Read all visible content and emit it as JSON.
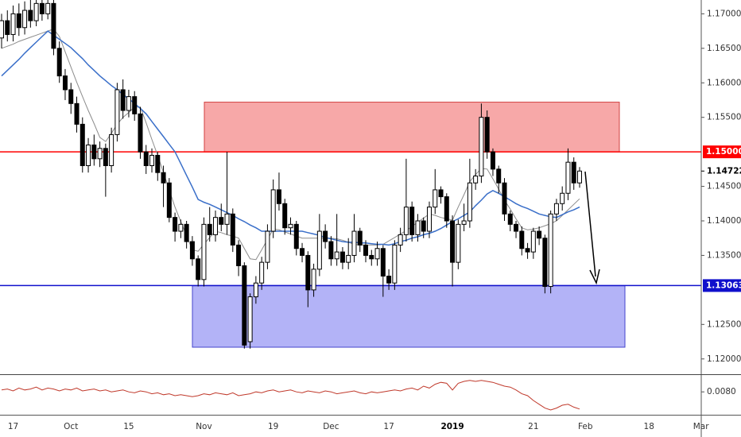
{
  "chart_data": [
    {
      "type": "candlestick",
      "categories": [
        null,
        null,
        "17",
        null,
        null,
        null,
        null,
        null,
        null,
        null,
        null,
        null,
        "Oct",
        null,
        null,
        null,
        null,
        null,
        null,
        null,
        null,
        null,
        "15",
        null,
        null,
        null,
        null,
        null,
        null,
        null,
        null,
        null,
        null,
        null,
        null,
        "Nov",
        null,
        null,
        null,
        null,
        null,
        null,
        null,
        null,
        null,
        null,
        null,
        "19",
        null,
        null,
        null,
        null,
        null,
        null,
        null,
        null,
        null,
        "Dec",
        null,
        null,
        null,
        null,
        null,
        null,
        null,
        null,
        null,
        "17",
        null,
        null,
        null,
        null,
        null,
        null,
        null,
        null,
        null,
        null,
        "2019",
        null,
        null,
        null,
        null,
        null,
        null,
        null,
        null,
        null,
        null,
        null,
        null,
        null,
        "21",
        null,
        null,
        null,
        null,
        null,
        null,
        null,
        null,
        "Feb",
        null,
        null,
        null,
        null,
        null,
        null,
        null,
        null,
        null,
        null,
        "18",
        null,
        null,
        null,
        null,
        null,
        null,
        null,
        null,
        "Mar"
      ],
      "open": [
        1.1665,
        1.169,
        1.167,
        1.17,
        1.168,
        1.1705,
        1.169,
        1.1715,
        1.17,
        1.1715,
        1.165,
        1.161,
        1.159,
        1.157,
        1.154,
        1.148,
        1.151,
        1.149,
        1.1505,
        1.148,
        1.1525,
        1.159,
        1.156,
        1.158,
        1.1555,
        1.15,
        1.148,
        1.1495,
        1.147,
        1.1455,
        1.1405,
        1.1385,
        1.1395,
        1.137,
        1.1345,
        1.1315,
        1.1395,
        1.138,
        1.1405,
        1.1395,
        1.141,
        1.1365,
        1.1335,
        1.1225,
        1.129,
        1.131,
        1.134,
        1.1385,
        1.1445,
        1.1425,
        1.139,
        1.1395,
        1.136,
        1.135,
        1.13,
        1.133,
        1.1385,
        1.137,
        1.1345,
        1.1355,
        1.134,
        1.135,
        1.1385,
        1.1365,
        1.135,
        1.1345,
        1.136,
        1.132,
        1.131,
        1.1365,
        1.138,
        1.142,
        1.138,
        1.14,
        1.1385,
        1.142,
        1.1445,
        1.1435,
        1.14,
        1.134,
        1.1395,
        1.14,
        1.1455,
        1.1465,
        1.155,
        1.15,
        1.1475,
        1.1455,
        1.141,
        1.1395,
        1.1385,
        1.136,
        1.1355,
        1.1385,
        1.1375,
        1.1305,
        1.141,
        1.1425,
        1.144,
        1.1485,
        1.1455,
        null,
        null,
        null,
        null,
        null,
        null,
        null,
        null,
        null,
        null,
        null,
        null,
        null,
        null,
        null,
        null,
        null,
        null,
        null,
        null,
        null
      ],
      "high": [
        1.17,
        1.1705,
        1.1712,
        1.1715,
        1.1718,
        1.172,
        1.173,
        1.1725,
        1.1728,
        1.1725,
        1.166,
        1.162,
        1.16,
        1.158,
        1.155,
        1.152,
        1.1525,
        1.1515,
        1.1512,
        1.1535,
        1.16,
        1.1605,
        1.159,
        1.1588,
        1.1565,
        1.151,
        1.1505,
        1.15,
        1.148,
        1.1462,
        1.1412,
        1.1402,
        1.14,
        1.1378,
        1.135,
        1.1405,
        1.142,
        1.1415,
        1.1425,
        1.15,
        1.1418,
        1.1372,
        1.134,
        1.1295,
        1.132,
        1.1348,
        1.1395,
        1.146,
        1.147,
        1.1432,
        1.1405,
        1.14,
        1.1368,
        1.1356,
        1.1338,
        1.141,
        1.1395,
        1.1378,
        1.141,
        1.1362,
        1.1375,
        1.141,
        1.139,
        1.1372,
        1.1358,
        1.137,
        1.1365,
        1.133,
        1.1372,
        1.139,
        1.149,
        1.1428,
        1.141,
        1.1405,
        1.1428,
        1.1475,
        1.145,
        1.144,
        1.1408,
        1.1402,
        1.1425,
        1.149,
        1.1475,
        1.157,
        1.156,
        1.1505,
        1.148,
        1.1462,
        1.1415,
        1.14,
        1.1392,
        1.1368,
        1.139,
        1.1392,
        1.138,
        1.1415,
        1.1432,
        1.145,
        1.1505,
        1.1492,
        1.1478,
        null,
        null,
        null,
        null,
        null,
        null,
        null,
        null,
        null,
        null,
        null,
        null,
        null,
        null,
        null,
        null,
        null,
        null,
        null,
        null,
        null
      ],
      "low": [
        1.165,
        1.166,
        1.166,
        1.1668,
        1.167,
        1.168,
        1.1682,
        1.169,
        1.1692,
        1.164,
        1.16,
        1.1575,
        1.1555,
        1.1528,
        1.147,
        1.147,
        1.148,
        1.1478,
        1.1435,
        1.147,
        1.1515,
        1.1548,
        1.155,
        1.1545,
        1.149,
        1.1468,
        1.147,
        1.1458,
        1.142,
        1.1398,
        1.137,
        1.1375,
        1.136,
        1.1335,
        1.1305,
        1.1305,
        1.137,
        1.137,
        1.1385,
        1.138,
        1.1355,
        1.132,
        1.1215,
        1.1215,
        1.128,
        1.13,
        1.133,
        1.1375,
        1.1415,
        1.138,
        1.138,
        1.135,
        1.134,
        1.1275,
        1.129,
        1.132,
        1.136,
        1.1335,
        1.1335,
        1.133,
        1.133,
        1.134,
        1.1355,
        1.134,
        1.1335,
        1.1335,
        1.129,
        1.13,
        1.13,
        1.1355,
        1.137,
        1.137,
        1.137,
        1.1375,
        1.1375,
        1.141,
        1.1425,
        1.139,
        1.1305,
        1.133,
        1.1385,
        1.139,
        1.1445,
        1.1455,
        1.149,
        1.1465,
        1.144,
        1.14,
        1.1385,
        1.1375,
        1.135,
        1.1345,
        1.1345,
        1.1365,
        1.1295,
        1.1295,
        1.14,
        1.1415,
        1.143,
        1.1445,
        1.1448,
        null,
        null,
        null,
        null,
        null,
        null,
        null,
        null,
        null,
        null,
        null,
        null,
        null,
        null,
        null,
        null,
        null,
        null,
        null,
        null,
        null
      ],
      "close": [
        1.169,
        1.167,
        1.17,
        1.168,
        1.1705,
        1.169,
        1.1715,
        1.17,
        1.1715,
        1.165,
        1.161,
        1.159,
        1.157,
        1.154,
        1.148,
        1.151,
        1.149,
        1.1505,
        1.148,
        1.1525,
        1.159,
        1.156,
        1.158,
        1.1555,
        1.15,
        1.148,
        1.1495,
        1.147,
        1.1455,
        1.1405,
        1.1385,
        1.1395,
        1.137,
        1.1345,
        1.1315,
        1.1395,
        1.138,
        1.1405,
        1.1395,
        1.141,
        1.1365,
        1.1335,
        1.122,
        1.129,
        1.131,
        1.134,
        1.1385,
        1.1445,
        1.1425,
        1.139,
        1.1395,
        1.136,
        1.135,
        1.13,
        1.133,
        1.1385,
        1.137,
        1.1345,
        1.1355,
        1.134,
        1.135,
        1.1385,
        1.1365,
        1.135,
        1.1345,
        1.136,
        1.132,
        1.131,
        1.1365,
        1.138,
        1.142,
        1.138,
        1.14,
        1.1385,
        1.142,
        1.1445,
        1.1435,
        1.14,
        1.134,
        1.1395,
        1.14,
        1.1455,
        1.1465,
        1.155,
        1.15,
        1.1475,
        1.1455,
        1.141,
        1.1395,
        1.1385,
        1.136,
        1.1355,
        1.1385,
        1.1375,
        1.1305,
        1.141,
        1.1425,
        1.144,
        1.1485,
        1.1455,
        1.14722,
        null,
        null,
        null,
        null,
        null,
        null,
        null,
        null,
        null,
        null,
        null,
        null,
        null,
        null,
        null,
        null,
        null,
        null,
        null,
        null,
        null
      ],
      "up_color": "#ffffff",
      "down_color": "#000000",
      "overlays": [
        {
          "color": "#8c8c8c",
          "values": [
            1.165,
            1.1653,
            1.1656,
            1.166,
            1.1663,
            1.1666,
            1.1669,
            1.1672,
            1.1675,
            1.1678,
            1.1667,
            1.1645,
            1.1623,
            1.1601,
            1.158,
            1.156,
            1.1541,
            1.1521,
            1.1515,
            1.1527,
            1.154,
            1.155,
            1.1557,
            1.1565,
            1.1565,
            1.1542,
            1.1518,
            1.1495,
            1.147,
            1.1445,
            1.142,
            1.1399,
            1.1379,
            1.1358,
            1.1356,
            1.1366,
            1.1376,
            1.1385,
            1.1383,
            1.138,
            1.1378,
            1.1375,
            1.136,
            1.1345,
            1.1344,
            1.1358,
            1.1373,
            1.1388,
            1.1387,
            1.1384,
            1.1381,
            1.1378,
            1.1375,
            1.1375,
            1.1375,
            1.1375,
            1.1375,
            1.1375,
            1.1374,
            1.1372,
            1.1369,
            1.1366,
            1.1365,
            1.1365,
            1.1365,
            1.1365,
            1.1366,
            1.1371,
            1.1376,
            1.1381,
            1.1386,
            1.1392,
            1.1398,
            1.1404,
            1.141,
            1.1408,
            1.1405,
            1.1403,
            1.1401,
            1.142,
            1.1438,
            1.1457,
            1.1467,
            1.1476,
            1.1475,
            1.1461,
            1.1446,
            1.143,
            1.1417,
            1.1403,
            1.139,
            1.1387,
            1.1388,
            1.139,
            1.1393,
            1.1396,
            1.14,
            1.1408,
            1.1416,
            1.1424,
            1.1432,
            null,
            null,
            null,
            null,
            null,
            null,
            null,
            null,
            null,
            null,
            null,
            null,
            null,
            null,
            null,
            null,
            null,
            null,
            null,
            null,
            null
          ]
        },
        {
          "color": "#3a6fc9",
          "values": [
            1.161,
            1.1618,
            1.1626,
            1.1634,
            1.1643,
            1.1651,
            1.1659,
            1.1667,
            1.1675,
            1.1669,
            1.1663,
            1.1657,
            1.1651,
            1.1643,
            1.1635,
            1.1626,
            1.1618,
            1.161,
            1.1603,
            1.1596,
            1.159,
            1.1583,
            1.1577,
            1.157,
            1.1563,
            1.1555,
            1.1544,
            1.1533,
            1.1522,
            1.1511,
            1.15,
            1.1483,
            1.1466,
            1.1449,
            1.1431,
            1.1427,
            1.1424,
            1.142,
            1.1416,
            1.1412,
            1.1408,
            1.1403,
            1.1399,
            1.1394,
            1.139,
            1.1385,
            1.1385,
            1.1385,
            1.1385,
            1.1385,
            1.1385,
            1.1385,
            1.1385,
            1.1383,
            1.1381,
            1.1379,
            1.1376,
            1.1374,
            1.1372,
            1.137,
            1.1369,
            1.1369,
            1.1368,
            1.1368,
            1.1367,
            1.1366,
            1.1366,
            1.1365,
            1.1367,
            1.137,
            1.1372,
            1.1375,
            1.1377,
            1.138,
            1.1382,
            1.1385,
            1.1389,
            1.1394,
            1.1399,
            1.1403,
            1.1408,
            1.1413,
            1.1422,
            1.143,
            1.1439,
            1.1444,
            1.144,
            1.1435,
            1.143,
            1.1425,
            1.1421,
            1.1418,
            1.1414,
            1.141,
            1.1408,
            1.1406,
            1.1405,
            1.1409,
            1.1413,
            1.1416,
            1.142,
            null,
            null,
            null,
            null,
            null,
            null,
            null,
            null,
            null,
            null,
            null,
            null,
            null,
            null,
            null,
            null,
            null,
            null,
            null,
            null,
            null
          ]
        }
      ],
      "zones": [
        {
          "top": 1.1572,
          "bottom": 1.15,
          "color": "#f7a8a8",
          "stroke": "#d04040"
        },
        {
          "top": 1.1306,
          "bottom": 1.1217,
          "color": "#b3b3f7",
          "stroke": "#4444cc"
        }
      ],
      "hlines": [
        {
          "value": 1.15,
          "label": "1.15000",
          "color": "#ff0000"
        },
        {
          "value": 1.13063,
          "label": "1.13063",
          "color": "#1010cc"
        }
      ],
      "last_price": {
        "value": 1.14722,
        "label": "1.14722"
      },
      "ylim": [
        1.1179,
        1.172
      ],
      "yticks": [
        {
          "value": 1.12,
          "label": "1.12000"
        },
        {
          "value": 1.125,
          "label": "1.12500"
        },
        {
          "value": 1.135,
          "label": "1.13500"
        },
        {
          "value": 1.14,
          "label": "1.14000"
        },
        {
          "value": 1.145,
          "label": "1.14500"
        },
        {
          "value": 1.155,
          "label": "1.15500"
        },
        {
          "value": 1.16,
          "label": "1.16000"
        },
        {
          "value": 1.165,
          "label": "1.16500"
        },
        {
          "value": 1.17,
          "label": "1.17000"
        }
      ]
    },
    {
      "type": "line",
      "color": "#c0392b",
      "values": [
        0.0082,
        0.0083,
        0.0081,
        0.0084,
        0.0082,
        0.0083,
        0.0085,
        0.0082,
        0.0084,
        0.0083,
        0.0081,
        0.0083,
        0.0082,
        0.0084,
        0.0081,
        0.0082,
        0.0083,
        0.0081,
        0.0082,
        0.008,
        0.0081,
        0.0082,
        0.008,
        0.0079,
        0.0081,
        0.008,
        0.0078,
        0.0079,
        0.0077,
        0.0078,
        0.0076,
        0.0077,
        0.0076,
        0.0075,
        0.0076,
        0.0078,
        0.0077,
        0.0079,
        0.0078,
        0.0077,
        0.0079,
        0.0076,
        0.0077,
        0.0078,
        0.008,
        0.0079,
        0.0081,
        0.0082,
        0.008,
        0.0081,
        0.0082,
        0.008,
        0.0079,
        0.0081,
        0.008,
        0.0079,
        0.0081,
        0.008,
        0.0078,
        0.0079,
        0.008,
        0.0081,
        0.0079,
        0.0078,
        0.008,
        0.0079,
        0.008,
        0.0081,
        0.0082,
        0.0081,
        0.0083,
        0.0084,
        0.0082,
        0.0086,
        0.0084,
        0.0088,
        0.009,
        0.0089,
        0.0082,
        0.0089,
        0.0091,
        0.0092,
        0.0091,
        0.0092,
        0.0091,
        0.009,
        0.0088,
        0.0086,
        0.0085,
        0.0082,
        0.0078,
        0.0076,
        0.0071,
        0.0067,
        0.0063,
        0.0061,
        0.0063,
        0.0066,
        0.0067,
        0.0064,
        0.0062,
        null,
        null,
        null,
        null,
        null,
        null,
        null,
        null,
        null,
        null,
        null,
        null,
        null,
        null,
        null,
        null,
        null,
        null,
        null,
        null,
        null
      ],
      "ylim": [
        0.0056,
        0.0096
      ],
      "yticks": [
        {
          "value": 0.008,
          "label": "0.0080"
        }
      ]
    }
  ]
}
